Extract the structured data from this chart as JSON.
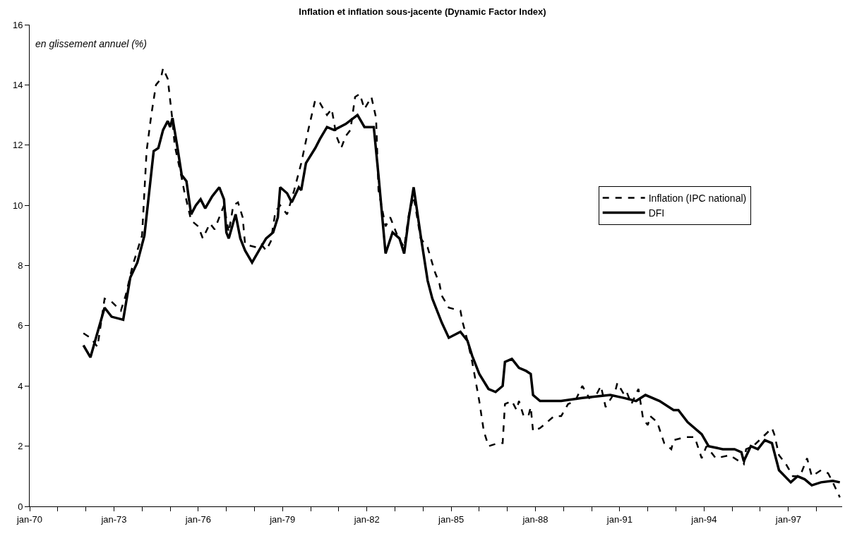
{
  "chart_data": {
    "type": "line",
    "title": "Inflation et inflation sous-jacente (Dynamic Factor Index)",
    "annotations": [
      "en glissement annuel (%)"
    ],
    "xlim": [
      "1970-01",
      "1998-12"
    ],
    "xticks": [
      {
        "value": "1970-01",
        "label": "jan-70"
      },
      {
        "value": "1971-01",
        "label": null
      },
      {
        "value": "1972-01",
        "label": null
      },
      {
        "value": "1973-01",
        "label": "jan-73"
      },
      {
        "value": "1974-01",
        "label": null
      },
      {
        "value": "1975-01",
        "label": null
      },
      {
        "value": "1976-01",
        "label": "jan-76"
      },
      {
        "value": "1977-01",
        "label": null
      },
      {
        "value": "1978-01",
        "label": null
      },
      {
        "value": "1979-01",
        "label": "jan-79"
      },
      {
        "value": "1980-01",
        "label": null
      },
      {
        "value": "1981-01",
        "label": null
      },
      {
        "value": "1982-01",
        "label": "jan-82"
      },
      {
        "value": "1983-01",
        "label": null
      },
      {
        "value": "1984-01",
        "label": null
      },
      {
        "value": "1985-01",
        "label": "jan-85"
      },
      {
        "value": "1986-01",
        "label": null
      },
      {
        "value": "1987-01",
        "label": null
      },
      {
        "value": "1988-01",
        "label": "jan-88"
      },
      {
        "value": "1989-01",
        "label": null
      },
      {
        "value": "1990-01",
        "label": null
      },
      {
        "value": "1991-01",
        "label": "jan-91"
      },
      {
        "value": "1992-01",
        "label": null
      },
      {
        "value": "1993-01",
        "label": null
      },
      {
        "value": "1994-01",
        "label": "jan-94"
      },
      {
        "value": "1995-01",
        "label": null
      },
      {
        "value": "1996-01",
        "label": null
      },
      {
        "value": "1997-01",
        "label": "jan-97"
      },
      {
        "value": "1998-01",
        "label": null
      }
    ],
    "ylim": [
      0,
      16
    ],
    "yticks": [
      0,
      2,
      4,
      6,
      8,
      10,
      12,
      14,
      16
    ],
    "legend": "right",
    "marker": "none",
    "series": [
      {
        "name": "Inflation (IPC national)",
        "color": "#000000",
        "line_style": "dashed",
        "x": [
          "1971-12",
          "1972-03",
          "1972-06",
          "1972-09",
          "1972-12",
          "1973-04",
          "1973-06",
          "1973-09",
          "1974-01",
          "1974-03",
          "1974-05",
          "1974-07",
          "1974-09",
          "1974-10",
          "1974-12",
          "1975-02",
          "1975-03",
          "1975-06",
          "1975-07",
          "1975-10",
          "1976-01",
          "1976-03",
          "1976-06",
          "1976-08",
          "1976-12",
          "1977-02",
          "1977-04",
          "1977-06",
          "1977-08",
          "1977-09",
          "1978-02",
          "1978-04",
          "1978-06",
          "1978-08",
          "1978-10",
          "1978-12",
          "1979-03",
          "1979-06",
          "1979-09",
          "1979-12",
          "1980-03",
          "1980-05",
          "1980-08",
          "1980-10",
          "1980-12",
          "1981-02",
          "1981-04",
          "1981-06",
          "1981-08",
          "1981-10",
          "1981-12",
          "1982-03",
          "1982-05",
          "1982-06",
          "1982-09",
          "1982-11",
          "1983-02",
          "1983-05",
          "1983-07",
          "1983-09",
          "1983-12",
          "1984-03",
          "1984-06",
          "1984-08",
          "1984-09",
          "1984-12",
          "1985-05",
          "1985-06",
          "1985-08",
          "1985-10",
          "1986-01",
          "1986-03",
          "1986-05",
          "1986-09",
          "1986-11",
          "1986-12",
          "1987-03",
          "1987-05",
          "1987-06",
          "1987-08",
          "1987-10",
          "1987-11",
          "1987-12",
          "1988-03",
          "1988-06",
          "1988-09",
          "1988-12",
          "1989-03",
          "1989-06",
          "1989-09",
          "1989-12",
          "1990-03",
          "1990-05",
          "1990-07",
          "1990-11",
          "1990-12",
          "1991-03",
          "1991-04",
          "1991-06",
          "1991-09",
          "1991-11",
          "1992-01",
          "1992-02",
          "1992-05",
          "1992-08",
          "1992-11",
          "1992-12",
          "1993-05",
          "1993-09",
          "1993-12",
          "1994-02",
          "1994-06",
          "1994-12",
          "1995-06",
          "1995-07",
          "1995-10",
          "1996-02",
          "1996-06",
          "1996-07",
          "1996-09",
          "1996-12",
          "1997-03",
          "1997-06",
          "1997-09",
          "1997-11",
          "1998-03",
          "1998-06",
          "1998-08",
          "1998-11"
        ],
        "values": [
          5.75,
          5.6,
          5.3,
          6.9,
          6.8,
          6.5,
          7.0,
          8.0,
          9.0,
          11.8,
          13.0,
          14.0,
          14.2,
          14.55,
          14.2,
          12.8,
          12.0,
          10.9,
          10.5,
          9.5,
          9.3,
          8.9,
          9.4,
          9.2,
          10.0,
          9.1,
          10.0,
          10.1,
          9.6,
          8.7,
          8.6,
          8.7,
          8.5,
          8.8,
          9.8,
          10.0,
          9.7,
          10.5,
          11.4,
          12.5,
          13.5,
          13.4,
          13.0,
          13.2,
          12.3,
          11.9,
          12.3,
          12.5,
          13.6,
          13.7,
          13.2,
          13.6,
          12.9,
          10.5,
          9.3,
          9.6,
          9.0,
          8.6,
          9.7,
          10.3,
          8.9,
          8.6,
          7.8,
          7.4,
          7.0,
          6.6,
          6.5,
          6.1,
          5.5,
          4.8,
          3.5,
          2.5,
          2.0,
          2.1,
          2.1,
          3.4,
          3.5,
          3.2,
          3.5,
          3.0,
          3.0,
          3.3,
          2.5,
          2.6,
          2.8,
          3.0,
          3.0,
          3.4,
          3.5,
          4.0,
          3.6,
          3.7,
          4.0,
          3.3,
          3.8,
          4.1,
          3.7,
          3.8,
          3.4,
          3.9,
          2.9,
          2.7,
          3.0,
          2.8,
          2.1,
          1.9,
          2.2,
          2.3,
          2.3,
          1.6,
          2.0,
          1.6,
          1.7,
          1.4,
          1.9,
          2.0,
          2.3,
          2.6,
          2.4,
          1.7,
          1.4,
          1.0,
          1.0,
          1.6,
          1.0,
          1.2,
          1.1,
          0.8,
          0.3
        ]
      },
      {
        "name": "DFI",
        "color": "#000000",
        "line_style": "solid",
        "x": [
          "1971-12",
          "1972-03",
          "1972-05",
          "1972-09",
          "1972-12",
          "1973-05",
          "1973-08",
          "1973-11",
          "1974-02",
          "1974-06",
          "1974-08",
          "1974-10",
          "1974-12",
          "1975-01",
          "1975-02",
          "1975-04",
          "1975-06",
          "1975-08",
          "1975-10",
          "1975-12",
          "1976-02",
          "1976-04",
          "1976-07",
          "1976-10",
          "1976-12",
          "1977-01",
          "1977-02",
          "1977-05",
          "1977-07",
          "1977-09",
          "1977-12",
          "1978-03",
          "1978-06",
          "1978-09",
          "1978-11",
          "1978-12",
          "1979-03",
          "1979-05",
          "1979-08",
          "1979-09",
          "1979-11",
          "1980-03",
          "1980-05",
          "1980-08",
          "1980-11",
          "1981-04",
          "1981-09",
          "1981-12",
          "1982-04",
          "1982-06",
          "1982-09",
          "1982-12",
          "1983-03",
          "1983-05",
          "1983-07",
          "1983-09",
          "1983-12",
          "1984-03",
          "1984-05",
          "1984-09",
          "1984-12",
          "1985-05",
          "1985-08",
          "1985-10",
          "1985-11",
          "1986-01",
          "1986-05",
          "1986-08",
          "1986-11",
          "1986-12",
          "1987-03",
          "1987-06",
          "1987-09",
          "1987-11",
          "1987-12",
          "1988-03",
          "1988-05",
          "1988-12",
          "1989-09",
          "1990-09",
          "1991-03",
          "1991-08",
          "1991-12",
          "1992-06",
          "1992-12",
          "1993-02",
          "1993-06",
          "1993-12",
          "1994-03",
          "1994-09",
          "1995-02",
          "1995-05",
          "1995-06",
          "1995-09",
          "1995-12",
          "1996-03",
          "1996-06",
          "1996-09",
          "1997-02",
          "1997-05",
          "1997-08",
          "1997-11",
          "1998-03",
          "1998-08",
          "1998-11"
        ],
        "values": [
          5.35,
          4.95,
          5.5,
          6.6,
          6.3,
          6.2,
          7.6,
          8.1,
          9.0,
          11.8,
          11.9,
          12.5,
          12.8,
          12.6,
          12.9,
          12.0,
          11.0,
          10.8,
          9.7,
          10.0,
          10.2,
          9.9,
          10.3,
          10.6,
          10.2,
          9.1,
          8.9,
          9.7,
          8.9,
          8.5,
          8.1,
          8.5,
          8.9,
          9.1,
          9.6,
          10.6,
          10.4,
          10.1,
          10.6,
          10.5,
          11.4,
          11.9,
          12.2,
          12.6,
          12.5,
          12.7,
          13.0,
          12.6,
          12.6,
          11.0,
          8.4,
          9.1,
          8.9,
          8.4,
          9.6,
          10.6,
          9.0,
          7.5,
          6.9,
          6.1,
          5.6,
          5.8,
          5.5,
          5.0,
          4.8,
          4.4,
          3.9,
          3.8,
          4.0,
          4.8,
          4.9,
          4.6,
          4.5,
          4.4,
          3.7,
          3.5,
          3.5,
          3.5,
          3.6,
          3.7,
          3.6,
          3.5,
          3.7,
          3.5,
          3.2,
          3.2,
          2.8,
          2.4,
          2.0,
          1.9,
          1.9,
          1.8,
          1.5,
          2.0,
          1.9,
          2.2,
          2.1,
          1.2,
          0.8,
          1.0,
          0.9,
          0.7,
          0.8,
          0.85,
          0.8
        ]
      }
    ]
  }
}
